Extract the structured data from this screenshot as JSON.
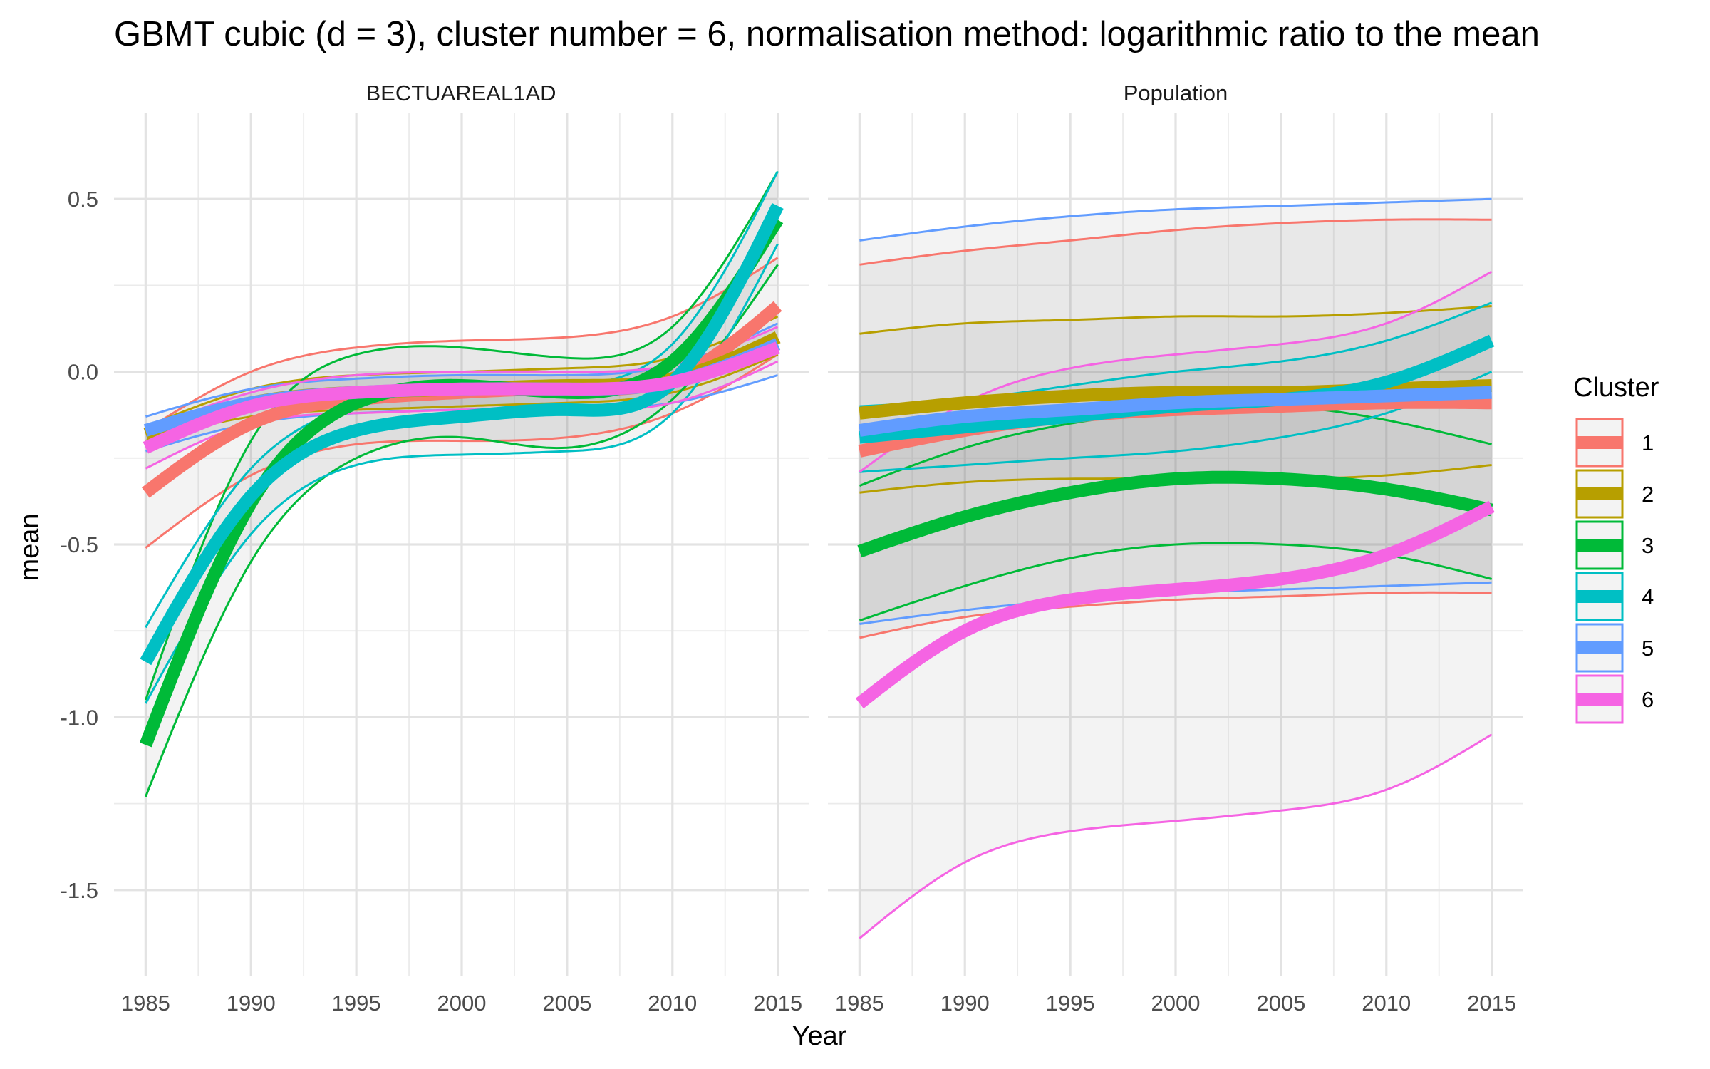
{
  "chart_data": {
    "type": "line",
    "title": "GBMT cubic (d = 3), cluster number = 6, normalisation method: logarithmic ratio to the mean",
    "xlabel": "Year",
    "ylabel": "mean",
    "xlim": [
      1983.5,
      2016.5
    ],
    "ylim": [
      -1.75,
      0.75
    ],
    "x_ticks": [
      1985,
      1990,
      1995,
      2000,
      2005,
      2010,
      2015
    ],
    "x_tick_labels": [
      "1985",
      "1990",
      "1995",
      "2000",
      "2005",
      "2010",
      "2015"
    ],
    "y_ticks": [
      0.5,
      0,
      -0.5,
      -1,
      -1.5
    ],
    "y_tick_labels": [
      "0.5",
      "0.0",
      "-0.5",
      "-1.0",
      "-1.5"
    ],
    "grid": true,
    "legend": {
      "title": "Cluster",
      "position": "right",
      "entries": [
        {
          "label": "1",
          "color": "#F8766D"
        },
        {
          "label": "2",
          "color": "#B79F00"
        },
        {
          "label": "3",
          "color": "#00BA38"
        },
        {
          "label": "4",
          "color": "#00BFC4"
        },
        {
          "label": "5",
          "color": "#619CFF"
        },
        {
          "label": "6",
          "color": "#F564E3"
        }
      ]
    },
    "panels": [
      {
        "name": "BECTUAREAL1AD",
        "series": [
          {
            "cluster": "1",
            "x": [
              1985,
              1990,
              1995,
              2000,
              2005,
              2010,
              2015
            ],
            "mean": [
              -0.35,
              -0.15,
              -0.08,
              -0.06,
              -0.05,
              -0.02,
              0.19
            ],
            "upper": [
              -0.17,
              0.0,
              0.07,
              0.09,
              0.1,
              0.16,
              0.33
            ],
            "lower": [
              -0.51,
              -0.3,
              -0.21,
              -0.2,
              -0.19,
              -0.12,
              0.05
            ]
          },
          {
            "cluster": "2",
            "x": [
              1985,
              1990,
              1995,
              2000,
              2005,
              2010,
              2015
            ],
            "mean": [
              -0.18,
              -0.09,
              -0.06,
              -0.05,
              -0.04,
              -0.02,
              0.1
            ],
            "upper": [
              -0.16,
              -0.05,
              -0.01,
              0.0,
              0.01,
              0.04,
              0.16
            ],
            "lower": [
              -0.2,
              -0.13,
              -0.11,
              -0.1,
              -0.09,
              -0.06,
              0.05
            ]
          },
          {
            "cluster": "3",
            "x": [
              1985,
              1990,
              1995,
              2000,
              2005,
              2010,
              2015
            ],
            "mean": [
              -1.08,
              -0.38,
              -0.09,
              -0.04,
              -0.06,
              0.03,
              0.44
            ],
            "upper": [
              -0.95,
              -0.2,
              0.05,
              0.07,
              0.04,
              0.13,
              0.58
            ],
            "lower": [
              -1.23,
              -0.55,
              -0.25,
              -0.19,
              -0.22,
              -0.08,
              0.31
            ]
          },
          {
            "cluster": "4",
            "x": [
              1985,
              1990,
              1995,
              2000,
              2005,
              2010,
              2015
            ],
            "mean": [
              -0.84,
              -0.36,
              -0.17,
              -0.13,
              -0.11,
              -0.03,
              0.48
            ],
            "upper": [
              -0.74,
              -0.28,
              -0.1,
              -0.06,
              -0.04,
              0.08,
              0.58
            ],
            "lower": [
              -0.96,
              -0.47,
              -0.27,
              -0.24,
              -0.23,
              -0.12,
              0.37
            ]
          },
          {
            "cluster": "5",
            "x": [
              1985,
              1990,
              1995,
              2000,
              2005,
              2010,
              2015
            ],
            "mean": [
              -0.17,
              -0.09,
              -0.06,
              -0.05,
              -0.05,
              -0.03,
              0.08
            ],
            "upper": [
              -0.13,
              -0.05,
              -0.02,
              -0.01,
              -0.01,
              0.02,
              0.14
            ],
            "lower": [
              -0.23,
              -0.15,
              -0.12,
              -0.11,
              -0.11,
              -0.09,
              -0.01
            ]
          },
          {
            "cluster": "6",
            "x": [
              1985,
              1990,
              1995,
              2000,
              2005,
              2010,
              2015
            ],
            "mean": [
              -0.22,
              -0.1,
              -0.06,
              -0.05,
              -0.05,
              -0.03,
              0.07
            ],
            "upper": [
              -0.17,
              -0.06,
              -0.01,
              0.0,
              0.0,
              0.02,
              0.13
            ],
            "lower": [
              -0.28,
              -0.15,
              -0.12,
              -0.11,
              -0.11,
              -0.09,
              0.03
            ]
          }
        ]
      },
      {
        "name": "Population",
        "series": [
          {
            "cluster": "1",
            "x": [
              1985,
              1990,
              1995,
              2000,
              2005,
              2010,
              2015
            ],
            "mean": [
              -0.23,
              -0.17,
              -0.13,
              -0.11,
              -0.1,
              -0.09,
              -0.09
            ],
            "upper": [
              0.31,
              0.35,
              0.38,
              0.41,
              0.43,
              0.44,
              0.44
            ],
            "lower": [
              -0.77,
              -0.71,
              -0.68,
              -0.66,
              -0.65,
              -0.64,
              -0.64
            ]
          },
          {
            "cluster": "2",
            "x": [
              1985,
              1990,
              1995,
              2000,
              2005,
              2010,
              2015
            ],
            "mean": [
              -0.12,
              -0.09,
              -0.07,
              -0.06,
              -0.06,
              -0.05,
              -0.04
            ],
            "upper": [
              0.11,
              0.14,
              0.15,
              0.16,
              0.16,
              0.17,
              0.19
            ],
            "lower": [
              -0.35,
              -0.32,
              -0.31,
              -0.31,
              -0.31,
              -0.3,
              -0.27
            ]
          },
          {
            "cluster": "3",
            "x": [
              1985,
              1990,
              1995,
              2000,
              2005,
              2010,
              2015
            ],
            "mean": [
              -0.52,
              -0.42,
              -0.35,
              -0.31,
              -0.31,
              -0.34,
              -0.4
            ],
            "upper": [
              -0.33,
              -0.22,
              -0.15,
              -0.11,
              -0.1,
              -0.14,
              -0.21
            ],
            "lower": [
              -0.72,
              -0.62,
              -0.54,
              -0.5,
              -0.5,
              -0.53,
              -0.6
            ]
          },
          {
            "cluster": "4",
            "x": [
              1985,
              1990,
              1995,
              2000,
              2005,
              2010,
              2015
            ],
            "mean": [
              -0.19,
              -0.16,
              -0.13,
              -0.1,
              -0.08,
              -0.03,
              0.09
            ],
            "upper": [
              -0.1,
              -0.08,
              -0.04,
              0.0,
              0.03,
              0.09,
              0.2
            ],
            "lower": [
              -0.29,
              -0.27,
              -0.25,
              -0.23,
              -0.19,
              -0.12,
              0.0
            ]
          },
          {
            "cluster": "5",
            "x": [
              1985,
              1990,
              1995,
              2000,
              2005,
              2010,
              2015
            ],
            "mean": [
              -0.17,
              -0.13,
              -0.11,
              -0.09,
              -0.08,
              -0.07,
              -0.06
            ],
            "upper": [
              0.38,
              0.42,
              0.45,
              0.47,
              0.48,
              0.49,
              0.5
            ],
            "lower": [
              -0.73,
              -0.69,
              -0.66,
              -0.64,
              -0.63,
              -0.62,
              -0.61
            ]
          },
          {
            "cluster": "6",
            "x": [
              1985,
              1990,
              1995,
              2000,
              2005,
              2010,
              2015
            ],
            "mean": [
              -0.96,
              -0.75,
              -0.66,
              -0.63,
              -0.6,
              -0.53,
              -0.39
            ],
            "upper": [
              -0.29,
              -0.09,
              0.01,
              0.05,
              0.08,
              0.14,
              0.29
            ],
            "lower": [
              -1.64,
              -1.42,
              -1.33,
              -1.3,
              -1.27,
              -1.21,
              -1.05
            ]
          }
        ]
      }
    ]
  }
}
